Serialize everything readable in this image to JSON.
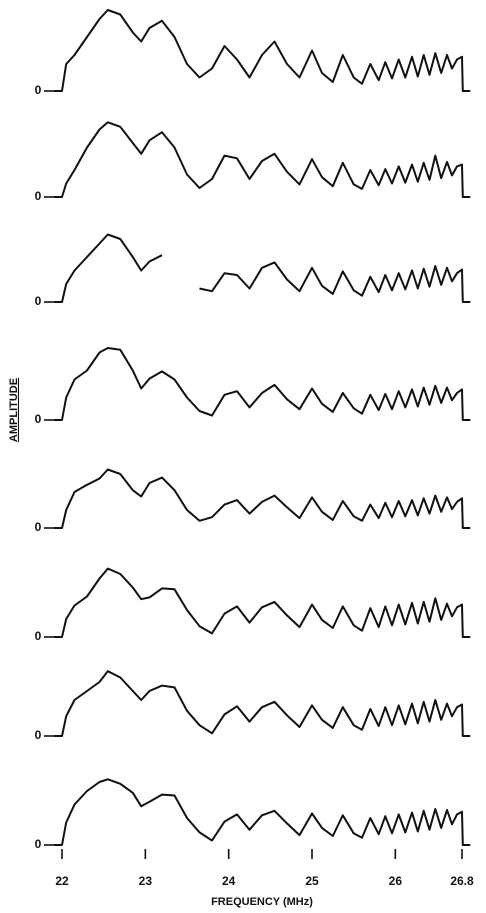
{
  "chart_data": [
    {
      "type": "line",
      "xlim": [
        21.9,
        26.9
      ],
      "ylim": [
        0,
        10
      ],
      "yticks": [
        0
      ],
      "x": [
        21.9,
        22.0,
        22.05,
        22.15,
        22.3,
        22.45,
        22.55,
        22.7,
        22.85,
        22.95,
        23.05,
        23.2,
        23.35,
        23.5,
        23.65,
        23.8,
        23.95,
        24.1,
        24.25,
        24.4,
        24.55,
        24.7,
        24.85,
        25.0,
        25.12,
        25.25,
        25.37,
        25.5,
        25.6,
        25.7,
        25.8,
        25.88,
        25.96,
        26.04,
        26.12,
        26.2,
        26.27,
        26.34,
        26.41,
        26.48,
        26.55,
        26.62,
        26.68,
        26.74,
        26.8,
        26.81,
        26.9
      ],
      "series": [
        {
          "color": "#111111",
          "values": [
            0,
            0,
            3,
            4,
            6,
            8,
            9,
            8.5,
            6.5,
            5.5,
            7,
            7.8,
            6,
            3,
            1.5,
            2.5,
            5,
            3.5,
            1.5,
            4,
            5.5,
            3,
            1.5,
            4.5,
            2,
            1,
            4,
            1.5,
            0.8,
            3,
            1.2,
            3.2,
            1.4,
            3.5,
            1.5,
            3.8,
            1.6,
            4,
            1.8,
            4.2,
            2,
            4,
            2.5,
            3.5,
            3.8,
            0,
            0
          ]
        }
      ]
    },
    {
      "type": "line",
      "xlim": [
        21.9,
        26.9
      ],
      "ylim": [
        0,
        10
      ],
      "yticks": [
        0
      ],
      "x": [
        21.9,
        22.0,
        22.05,
        22.15,
        22.3,
        22.45,
        22.55,
        22.7,
        22.85,
        22.95,
        23.05,
        23.2,
        23.35,
        23.5,
        23.65,
        23.8,
        23.95,
        24.1,
        24.25,
        24.4,
        24.55,
        24.7,
        24.85,
        25.0,
        25.12,
        25.25,
        25.37,
        25.5,
        25.6,
        25.7,
        25.8,
        25.88,
        25.96,
        26.04,
        26.12,
        26.2,
        26.27,
        26.34,
        26.41,
        26.48,
        26.55,
        26.62,
        26.68,
        26.74,
        26.8,
        26.81,
        26.9
      ],
      "series": [
        {
          "color": "#111111",
          "values": [
            0,
            0,
            1.5,
            3,
            5.5,
            7.5,
            8.3,
            7.8,
            6,
            4.8,
            6.3,
            7.2,
            5.5,
            2.5,
            1,
            2,
            4.6,
            4.3,
            2,
            4,
            4.8,
            2.8,
            1.4,
            4.2,
            2.2,
            1.2,
            3.8,
            1.4,
            0.9,
            3,
            1.3,
            3.1,
            1.5,
            3.4,
            1.6,
            3.6,
            1.7,
            3.8,
            1.9,
            4.6,
            2.1,
            3.9,
            2.4,
            3.4,
            3.6,
            0,
            0
          ]
        }
      ]
    },
    {
      "type": "line",
      "xlim": [
        21.9,
        26.9
      ],
      "ylim": [
        0,
        10
      ],
      "yticks": [
        0
      ],
      "x": [
        21.9,
        22.0,
        22.05,
        22.15,
        22.3,
        22.45,
        22.55,
        22.7,
        22.85,
        22.95,
        23.05,
        23.2,
        23.35,
        23.5,
        23.65,
        23.8,
        23.95,
        24.1,
        24.25,
        24.4,
        24.55,
        24.7,
        24.85,
        25.0,
        25.12,
        25.25,
        25.37,
        25.5,
        25.6,
        25.7,
        25.8,
        25.88,
        25.96,
        26.04,
        26.12,
        26.2,
        26.27,
        26.34,
        26.41,
        26.48,
        26.55,
        26.62,
        26.68,
        26.74,
        26.8,
        26.81,
        26.9
      ],
      "series": [
        {
          "color": "#111111",
          "values": [
            0,
            0,
            2,
            3.5,
            5,
            6.5,
            7.5,
            7,
            5,
            3.5,
            4.5,
            5.2,
            null,
            null,
            1.5,
            1.2,
            3.2,
            3,
            1.5,
            3.8,
            4.4,
            2.5,
            1.2,
            3.8,
            1.8,
            0.9,
            3.4,
            1.3,
            0.7,
            2.8,
            1.1,
            3,
            1.3,
            3.2,
            1.4,
            3.5,
            1.5,
            3.7,
            1.7,
            4,
            1.9,
            3.8,
            2.3,
            3.2,
            3.6,
            0,
            0
          ]
        }
      ]
    },
    {
      "type": "line",
      "xlim": [
        21.9,
        26.9
      ],
      "ylim": [
        0,
        10
      ],
      "yticks": [
        0
      ],
      "ylabel": "AMPLITUDE",
      "x": [
        21.9,
        22.0,
        22.05,
        22.15,
        22.3,
        22.45,
        22.55,
        22.7,
        22.85,
        22.95,
        23.05,
        23.2,
        23.35,
        23.5,
        23.65,
        23.8,
        23.95,
        24.1,
        24.25,
        24.4,
        24.55,
        24.7,
        24.85,
        25.0,
        25.12,
        25.25,
        25.37,
        25.5,
        25.6,
        25.7,
        25.8,
        25.88,
        25.96,
        26.04,
        26.12,
        26.2,
        26.27,
        26.34,
        26.41,
        26.48,
        26.55,
        26.62,
        26.68,
        26.74,
        26.8,
        26.81,
        26.9
      ],
      "series": [
        {
          "color": "#111111",
          "values": [
            0,
            0,
            2.5,
            4.5,
            5.5,
            7.5,
            8,
            7.8,
            5.5,
            3.5,
            4.6,
            5.4,
            4.5,
            2.5,
            1,
            0.5,
            2.8,
            3.2,
            1.4,
            3,
            3.9,
            2.3,
            1.2,
            3.5,
            1.8,
            0.9,
            3,
            1.3,
            0.7,
            2.8,
            1.1,
            2.9,
            1.2,
            3.2,
            1.4,
            3.4,
            1.5,
            3.6,
            1.7,
            3.8,
            1.9,
            3.6,
            2.2,
            3,
            3.4,
            0,
            0
          ]
        }
      ]
    },
    {
      "type": "line",
      "xlim": [
        21.9,
        26.9
      ],
      "ylim": [
        0,
        10
      ],
      "yticks": [
        0
      ],
      "x": [
        21.9,
        22.0,
        22.05,
        22.15,
        22.3,
        22.45,
        22.55,
        22.7,
        22.85,
        22.95,
        23.05,
        23.2,
        23.35,
        23.5,
        23.65,
        23.8,
        23.95,
        24.1,
        24.25,
        24.4,
        24.55,
        24.7,
        24.85,
        25.0,
        25.12,
        25.25,
        25.37,
        25.5,
        25.6,
        25.7,
        25.8,
        25.88,
        25.96,
        26.04,
        26.12,
        26.2,
        26.27,
        26.34,
        26.41,
        26.48,
        26.55,
        26.62,
        26.68,
        26.74,
        26.8,
        26.81,
        26.9
      ],
      "series": [
        {
          "color": "#111111",
          "values": [
            0,
            0,
            2,
            4,
            4.8,
            5.5,
            6.5,
            6,
            4.2,
            3.5,
            5,
            5.6,
            4.2,
            2,
            0.8,
            1.2,
            2.6,
            3.1,
            1.6,
            2.9,
            3.6,
            2.3,
            1.1,
            3.4,
            1.8,
            0.9,
            3,
            1.3,
            0.8,
            2.6,
            1.1,
            2.8,
            1.2,
            3,
            1.3,
            3.1,
            1.4,
            3.3,
            1.6,
            3.6,
            1.8,
            3.4,
            2.1,
            2.9,
            3.3,
            0,
            0
          ]
        }
      ]
    },
    {
      "type": "line",
      "xlim": [
        21.9,
        26.9
      ],
      "ylim": [
        0,
        10
      ],
      "yticks": [
        0
      ],
      "x": [
        21.9,
        22.0,
        22.05,
        22.15,
        22.3,
        22.45,
        22.55,
        22.7,
        22.85,
        22.95,
        23.05,
        23.2,
        23.35,
        23.5,
        23.65,
        23.8,
        23.95,
        24.1,
        24.25,
        24.4,
        24.55,
        24.7,
        24.85,
        25.0,
        25.12,
        25.25,
        25.37,
        25.5,
        25.6,
        25.7,
        25.8,
        25.88,
        25.96,
        26.04,
        26.12,
        26.2,
        26.27,
        26.34,
        26.41,
        26.48,
        26.55,
        26.62,
        26.68,
        26.74,
        26.8,
        26.81,
        26.9
      ],
      "series": [
        {
          "color": "#111111",
          "values": [
            0,
            0,
            2,
            3.5,
            4.5,
            6.5,
            7.6,
            7,
            5.5,
            4.2,
            4.4,
            5.4,
            5.3,
            3,
            1.2,
            0.4,
            2.6,
            3.4,
            1.6,
            3.3,
            3.9,
            2.4,
            1.1,
            3.6,
            1.9,
            1,
            3.4,
            1.3,
            0.7,
            3.2,
            1.1,
            3.4,
            1.3,
            3.6,
            1.4,
            3.8,
            1.5,
            3.9,
            1.7,
            4.3,
            1.9,
            3.7,
            2.3,
            3.3,
            3.6,
            0,
            0
          ]
        }
      ]
    },
    {
      "type": "line",
      "xlim": [
        21.9,
        26.9
      ],
      "ylim": [
        0,
        10
      ],
      "yticks": [
        0
      ],
      "x": [
        21.9,
        22.0,
        22.05,
        22.15,
        22.3,
        22.45,
        22.55,
        22.7,
        22.85,
        22.95,
        23.05,
        23.2,
        23.35,
        23.5,
        23.65,
        23.8,
        23.95,
        24.1,
        24.25,
        24.4,
        24.55,
        24.7,
        24.85,
        25.0,
        25.12,
        25.25,
        25.37,
        25.5,
        25.6,
        25.7,
        25.8,
        25.88,
        25.96,
        26.04,
        26.12,
        26.2,
        26.27,
        26.34,
        26.41,
        26.48,
        26.55,
        26.62,
        26.68,
        26.74,
        26.8,
        26.81,
        26.9
      ],
      "series": [
        {
          "color": "#111111",
          "values": [
            0,
            0,
            2.2,
            4,
            5,
            6,
            7.2,
            6.5,
            5,
            4,
            5,
            5.6,
            5.4,
            2.8,
            1.2,
            0.3,
            2.4,
            3.3,
            1.6,
            3.2,
            3.8,
            2.3,
            1,
            3.4,
            1.8,
            0.9,
            3.2,
            1.2,
            0.7,
            3,
            1.1,
            3.2,
            1.2,
            3.4,
            1.3,
            3.6,
            1.4,
            3.8,
            1.6,
            4,
            1.8,
            3.6,
            2.2,
            3.2,
            3.5,
            0,
            0
          ]
        }
      ]
    },
    {
      "type": "line",
      "xlim": [
        21.9,
        26.9
      ],
      "ylim": [
        0,
        10
      ],
      "yticks": [
        0
      ],
      "xticks": [
        22,
        23,
        24,
        25,
        26,
        26.8
      ],
      "xlabel": "FREQUENCY (MHz)",
      "x": [
        21.9,
        22.0,
        22.05,
        22.15,
        22.3,
        22.45,
        22.55,
        22.7,
        22.85,
        22.95,
        23.05,
        23.2,
        23.35,
        23.5,
        23.65,
        23.8,
        23.95,
        24.1,
        24.25,
        24.4,
        24.55,
        24.7,
        24.85,
        25.0,
        25.12,
        25.25,
        25.37,
        25.5,
        25.6,
        25.7,
        25.8,
        25.88,
        25.96,
        26.04,
        26.12,
        26.2,
        26.27,
        26.34,
        26.41,
        26.48,
        26.55,
        26.62,
        26.68,
        26.74,
        26.8,
        26.81,
        26.9
      ],
      "series": [
        {
          "color": "#111111",
          "values": [
            0,
            0,
            2.5,
            4.5,
            6,
            7,
            7.3,
            6.8,
            5.8,
            4.3,
            4.8,
            5.6,
            5.5,
            3,
            1.4,
            0.5,
            2.6,
            3.4,
            1.7,
            3.3,
            3.8,
            2.4,
            1.1,
            3.5,
            1.9,
            1,
            3.3,
            1.3,
            0.8,
            3,
            1.2,
            3.2,
            1.3,
            3.4,
            1.4,
            3.6,
            1.5,
            3.8,
            1.7,
            4,
            1.9,
            3.9,
            2.3,
            3.4,
            3.7,
            0,
            0
          ]
        }
      ]
    }
  ]
}
